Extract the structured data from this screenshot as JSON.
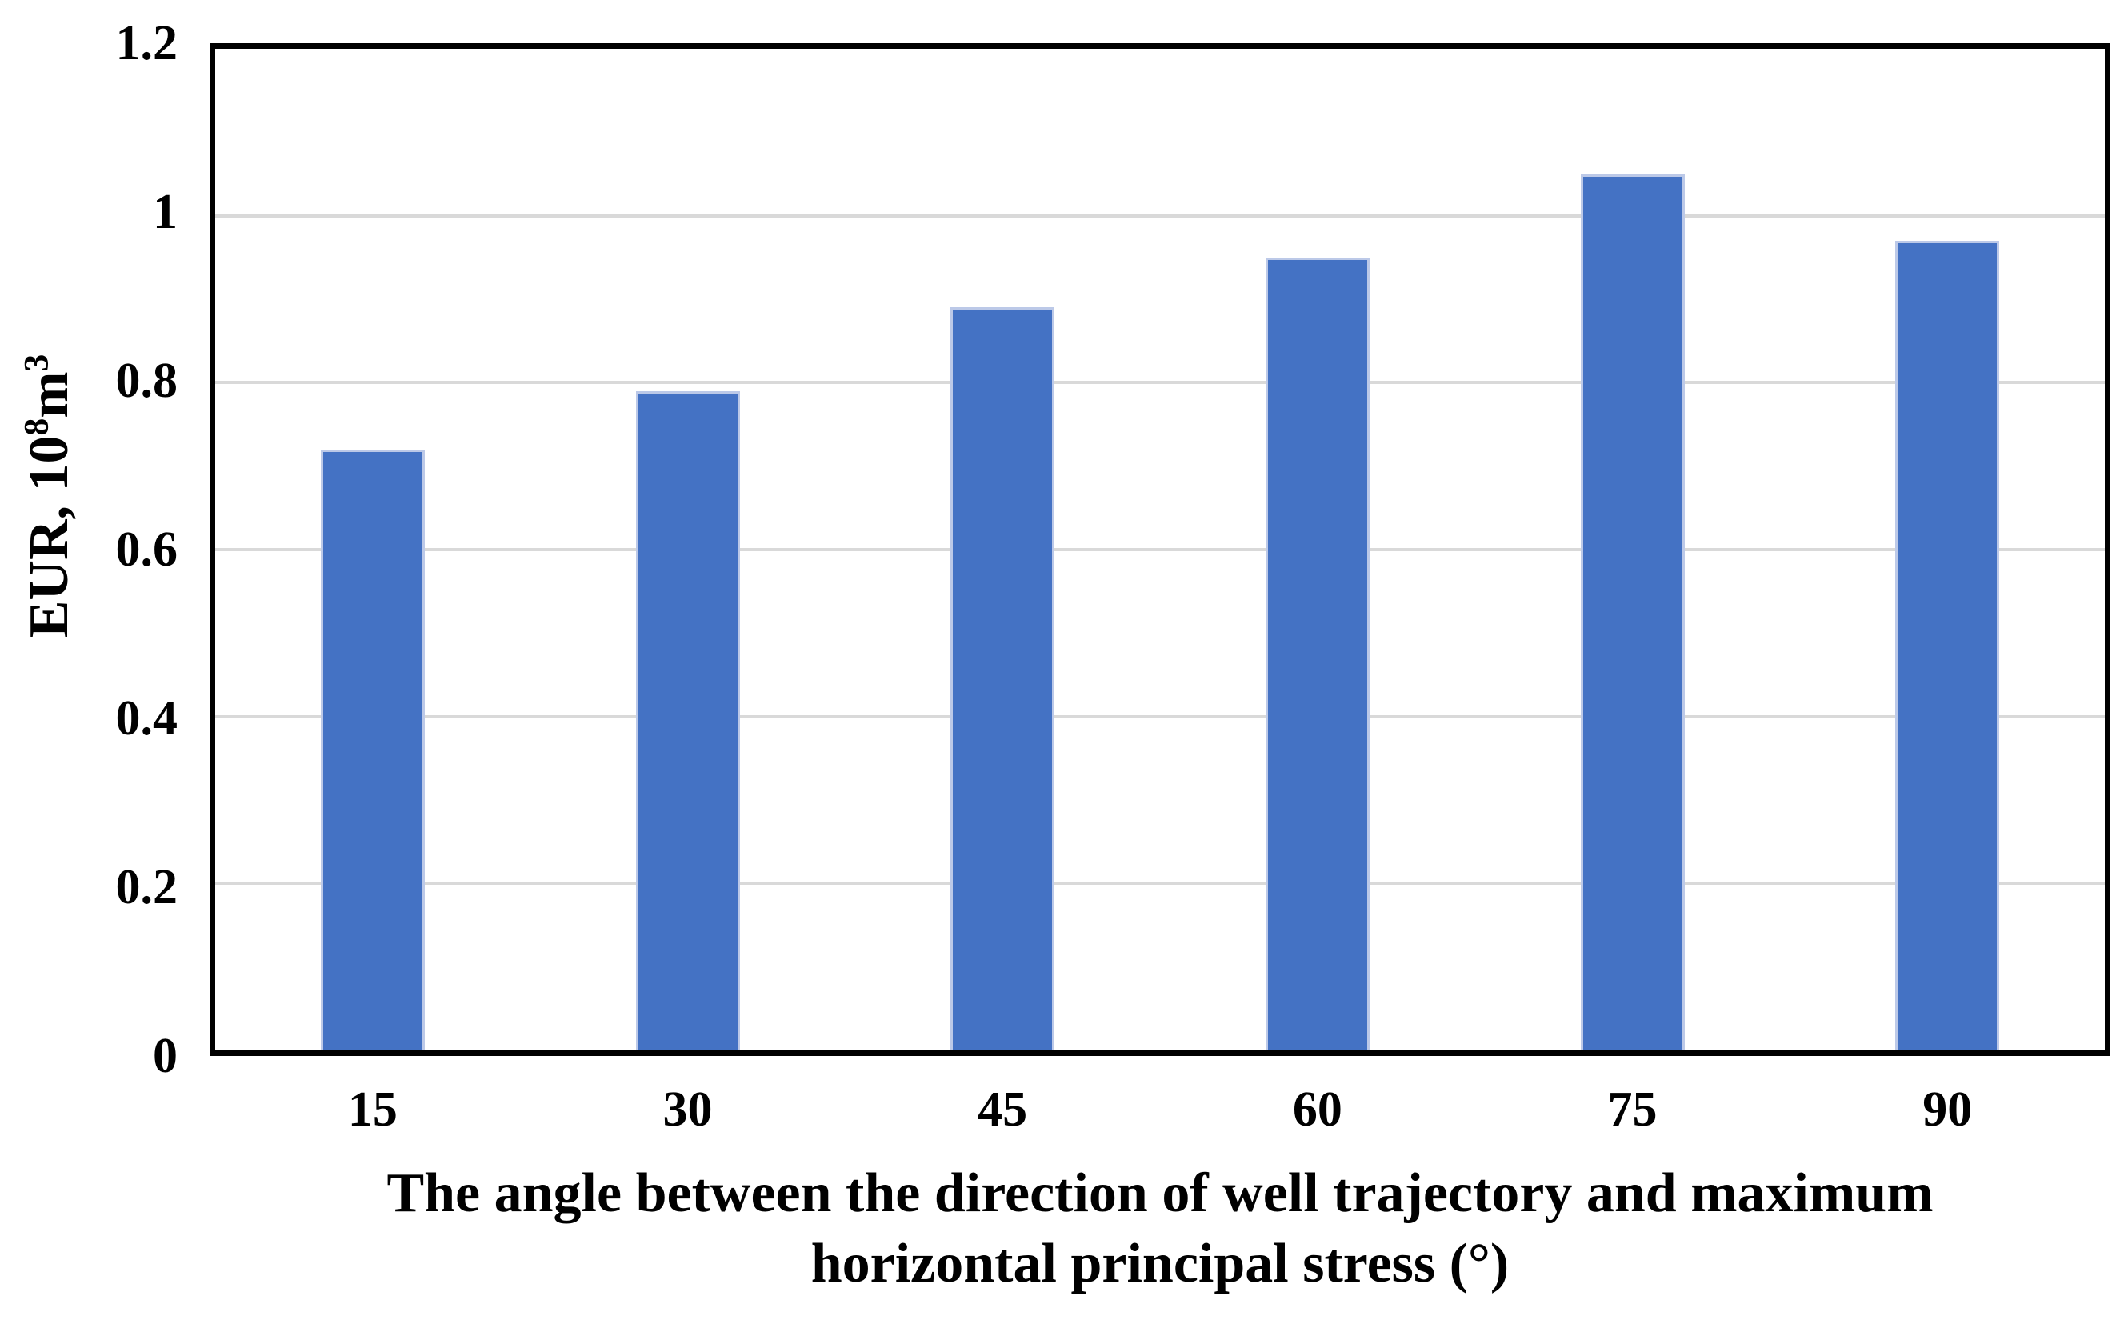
{
  "chart_data": {
    "type": "bar",
    "categories": [
      "15",
      "30",
      "45",
      "60",
      "75",
      "90"
    ],
    "values": [
      0.72,
      0.79,
      0.89,
      0.95,
      1.05,
      0.97
    ],
    "title": "",
    "xlabel": "The angle between the direction of well trajectory and maximum horizontal principal stress (°)",
    "xlabel_line1": "The angle between the direction of well trajectory and maximum",
    "xlabel_line2": "horizontal principal stress (°)",
    "ylabel": "EUR, 10⁸m³",
    "ylabel_parts": {
      "prefix": "EUR, 10",
      "sup1": "8",
      "mid": "m",
      "sup2": "3"
    },
    "yticks": [
      "1.2",
      "1",
      "0.8",
      "0.6",
      "0.4",
      "0.2",
      "0"
    ],
    "ytick_values": [
      1.2,
      1.0,
      0.8,
      0.6,
      0.4,
      0.2,
      0
    ],
    "gridline_values": [
      0.2,
      0.4,
      0.6,
      0.8,
      1.0
    ],
    "ylim": [
      0,
      1.2
    ],
    "grid": "horizontal",
    "legend_position": "none",
    "colors": {
      "bar_fill": "#4472C4",
      "bar_border": "#bcc9e8",
      "gridline": "#d9d9d9",
      "axis": "#000000",
      "background": "#ffffff",
      "text": "#000000"
    }
  }
}
